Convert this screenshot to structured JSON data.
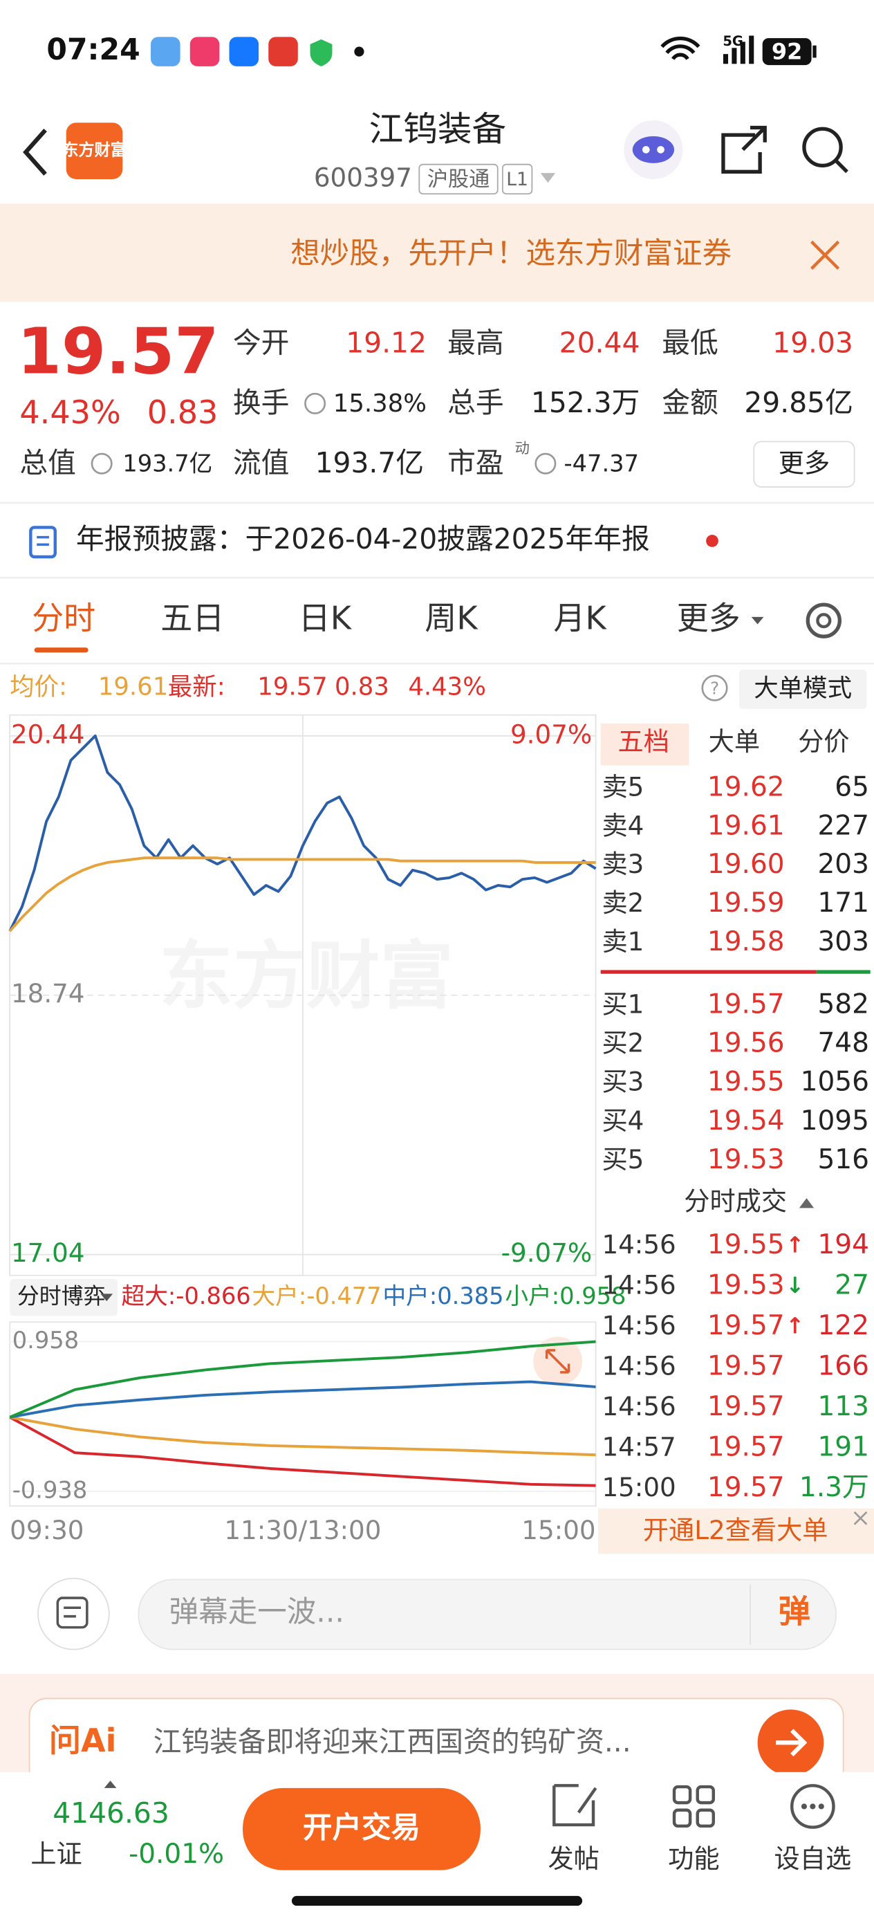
{
  "status": {
    "time": "07:24",
    "network": "5G",
    "battery": "92"
  },
  "header": {
    "logo": "东方财富",
    "title": "江钨装备",
    "code": "600397",
    "tag": "沪股通",
    "level": "L1"
  },
  "banner": {
    "text": "想炒股，先开户！选东方财富证券"
  },
  "quote": {
    "price": "19.57",
    "change_pct": "4.43%",
    "change": "0.83",
    "more": "更多",
    "fields": [
      {
        "label": "今开",
        "value": "19.12"
      },
      {
        "label": "最高",
        "value": "20.44"
      },
      {
        "label": "最低",
        "value": "19.03"
      },
      {
        "label": "换手",
        "value": "15.38%"
      },
      {
        "label": "总手",
        "value": "152.3万"
      },
      {
        "label": "金额",
        "value": "29.85亿"
      },
      {
        "label": "总值",
        "value": "193.7亿"
      },
      {
        "label": "流值",
        "value": "193.7亿"
      },
      {
        "label": "市盈",
        "sup": "动",
        "value": "-47.37"
      }
    ]
  },
  "notice": "年报预披露：于2026-04-20披露2025年年报",
  "tabs": [
    "分时",
    "五日",
    "日K",
    "周K",
    "月K",
    "更多"
  ],
  "info": {
    "avg_label": "均价:",
    "avg": "19.61",
    "last_label": "最新:",
    "last": "19.57",
    "change": "0.83",
    "change_pct": "4.43%",
    "mode": "大单模式"
  },
  "chart_data": [
    {
      "type": "line",
      "grid": true,
      "xlim": [
        0,
        240
      ],
      "xticks": [
        {
          "value": 0,
          "label": "09:30"
        },
        {
          "value": 120,
          "label": "11:30/13:00"
        },
        {
          "value": 240,
          "label": "15:00"
        }
      ],
      "ylim": [
        17.04,
        20.44
      ],
      "yticks": [
        20.44,
        18.74,
        17.04
      ],
      "y2lim": [
        -9.07,
        9.07
      ],
      "y2ticks": [
        {
          "value": 9.07,
          "label": "9.07%"
        },
        {
          "value": -9.07,
          "label": "-9.07%"
        }
      ],
      "x": [
        0,
        5,
        10,
        15,
        20,
        25,
        30,
        35,
        40,
        45,
        50,
        55,
        60,
        65,
        70,
        75,
        80,
        85,
        90,
        95,
        100,
        105,
        110,
        115,
        120,
        125,
        130,
        135,
        140,
        145,
        150,
        155,
        160,
        165,
        170,
        175,
        180,
        185,
        190,
        195,
        200,
        205,
        210,
        215,
        220,
        225,
        230,
        235,
        240
      ],
      "series": [
        {
          "name": "最新",
          "color": "#2a5ea8",
          "values": [
            19.16,
            19.32,
            19.56,
            19.88,
            20.04,
            20.28,
            20.36,
            20.44,
            20.2,
            20.12,
            19.96,
            19.72,
            19.64,
            19.76,
            19.64,
            19.72,
            19.64,
            19.6,
            19.64,
            19.52,
            19.4,
            19.46,
            19.42,
            19.52,
            19.72,
            19.88,
            20.0,
            20.04,
            19.9,
            19.72,
            19.64,
            19.5,
            19.46,
            19.56,
            19.54,
            19.5,
            19.51,
            19.54,
            19.5,
            19.43,
            19.46,
            19.45,
            19.5,
            19.51,
            19.48,
            19.51,
            19.54,
            19.62,
            19.57
          ]
        },
        {
          "name": "均价",
          "color": "#e8a23a",
          "values": [
            19.16,
            19.25,
            19.33,
            19.41,
            19.47,
            19.52,
            19.56,
            19.59,
            19.61,
            19.62,
            19.63,
            19.64,
            19.64,
            19.64,
            19.64,
            19.64,
            19.64,
            19.64,
            19.63,
            19.63,
            19.63,
            19.63,
            19.63,
            19.63,
            19.63,
            19.63,
            19.63,
            19.63,
            19.63,
            19.63,
            19.63,
            19.63,
            19.62,
            19.62,
            19.62,
            19.62,
            19.62,
            19.62,
            19.62,
            19.62,
            19.62,
            19.62,
            19.62,
            19.61,
            19.61,
            19.61,
            19.61,
            19.61,
            19.61
          ]
        }
      ]
    },
    {
      "type": "line",
      "title": "分时博弈",
      "grid": true,
      "ylim": [
        -0.938,
        0.958
      ],
      "yticks": [
        0.958,
        -0.938
      ],
      "series": [
        {
          "name": "超大:-0.866",
          "color": "#d9262c",
          "values": [
            0,
            -0.45,
            -0.5,
            -0.58,
            -0.65,
            -0.7,
            -0.75,
            -0.8,
            -0.85,
            -0.866
          ]
        },
        {
          "name": "大户:-0.477",
          "color": "#e8a23a",
          "values": [
            0,
            -0.15,
            -0.25,
            -0.32,
            -0.36,
            -0.38,
            -0.4,
            -0.42,
            -0.45,
            -0.477
          ]
        },
        {
          "name": "中户:0.385",
          "color": "#2a6fb5",
          "values": [
            0,
            0.15,
            0.22,
            0.28,
            0.32,
            0.35,
            0.38,
            0.42,
            0.45,
            0.385
          ]
        },
        {
          "name": "小户:0.958",
          "color": "#1a9a3a",
          "values": [
            0,
            0.35,
            0.5,
            0.6,
            0.68,
            0.72,
            0.76,
            0.82,
            0.9,
            0.958
          ]
        }
      ]
    }
  ],
  "order_book": {
    "tabs": [
      "五档",
      "大单",
      "分价"
    ],
    "asks": [
      {
        "name": "卖5",
        "price": "19.62",
        "volume": "65"
      },
      {
        "name": "卖4",
        "price": "19.61",
        "volume": "227"
      },
      {
        "name": "卖3",
        "price": "19.60",
        "volume": "203"
      },
      {
        "name": "卖2",
        "price": "19.59",
        "volume": "171"
      },
      {
        "name": "卖1",
        "price": "19.58",
        "volume": "303"
      }
    ],
    "bids": [
      {
        "name": "买1",
        "price": "19.57",
        "volume": "582"
      },
      {
        "name": "买2",
        "price": "19.56",
        "volume": "748"
      },
      {
        "name": "买3",
        "price": "19.55",
        "volume": "1056"
      },
      {
        "name": "买4",
        "price": "19.54",
        "volume": "1095"
      },
      {
        "name": "买5",
        "price": "19.53",
        "volume": "516"
      }
    ]
  },
  "trades": {
    "title": "分时成交",
    "l2": "开通L2查看大单",
    "rows": [
      {
        "time": "14:56",
        "price": "19.55",
        "arrow": "↑",
        "volume": "194",
        "color": "#d9262c"
      },
      {
        "time": "14:56",
        "price": "19.53",
        "arrow": "↓",
        "volume": "27",
        "color": "#1a9a3a"
      },
      {
        "time": "14:56",
        "price": "19.57",
        "arrow": "↑",
        "volume": "122",
        "color": "#d9262c"
      },
      {
        "time": "14:56",
        "price": "19.57",
        "volume": "166",
        "color": "#d9262c"
      },
      {
        "time": "14:56",
        "price": "19.57",
        "volume": "113",
        "color": "#1a9a3a"
      },
      {
        "time": "14:57",
        "price": "19.57",
        "volume": "191",
        "color": "#1a9a3a"
      },
      {
        "time": "15:00",
        "price": "19.57",
        "volume": "1.3万",
        "color": "#1a9a3a"
      }
    ]
  },
  "comment": {
    "placeholder": "弹幕走一波...",
    "button": "弹"
  },
  "ai": {
    "logo": "问Ai",
    "text": "江钨装备即将迎来江西国资的钨矿资..."
  },
  "bottom": {
    "index_value": "4146.63",
    "index_name": "上证",
    "index_change": "-0.01%",
    "trade": "开户交易",
    "items": [
      "发帖",
      "功能",
      "设自选"
    ]
  }
}
